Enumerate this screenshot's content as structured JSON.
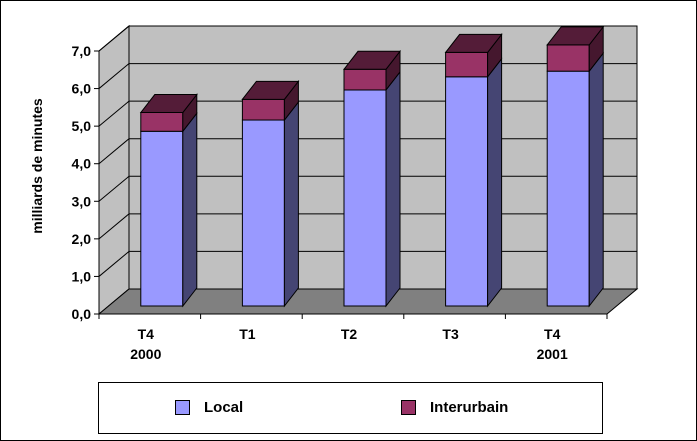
{
  "chart_data": {
    "type": "bar",
    "stacked": true,
    "three_d": true,
    "ylabel": "milliards de minutes",
    "xlabel": "",
    "title": "",
    "ylim": [
      0,
      7
    ],
    "yticks": [
      "0,0",
      "1,0",
      "2,0",
      "3,0",
      "4,0",
      "5,0",
      "6,0",
      "7,0"
    ],
    "grid": true,
    "legend_position": "bottom",
    "categories": [
      [
        "T4",
        "2000"
      ],
      [
        "T1"
      ],
      [
        "T2"
      ],
      [
        "T3"
      ],
      [
        "T4",
        "2001"
      ]
    ],
    "series": [
      {
        "name": "Local",
        "color": "#9999ff",
        "values": [
          4.65,
          4.95,
          5.75,
          6.1,
          6.25
        ]
      },
      {
        "name": "Interurbain",
        "color": "#993366",
        "values": [
          0.5,
          0.55,
          0.55,
          0.65,
          0.7
        ]
      }
    ],
    "colors": {
      "wall": "#c0c0c0",
      "floor": "#808080",
      "grid": "#000000"
    }
  }
}
